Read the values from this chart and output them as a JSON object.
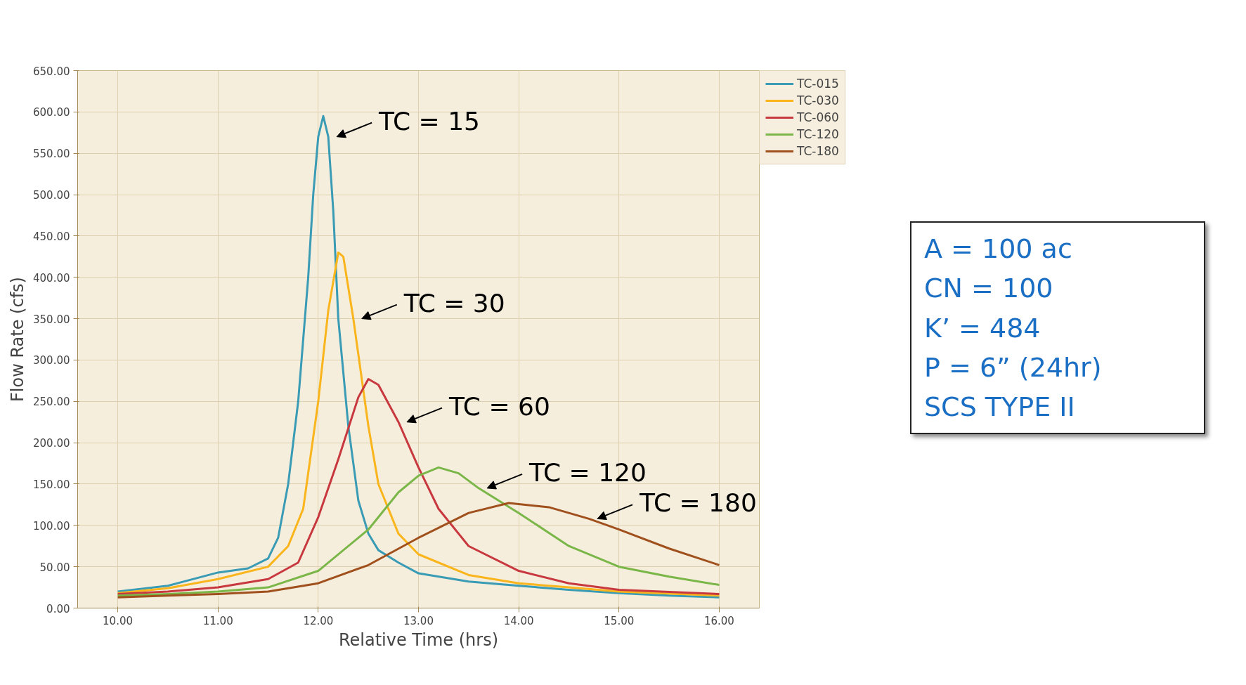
{
  "chart_data": {
    "type": "line",
    "xlabel": "Relative Time (hrs)",
    "ylabel": "Flow Rate (cfs)",
    "xlim": [
      9.6,
      16.4
    ],
    "ylim": [
      0,
      650
    ],
    "xticks": [
      {
        "value": 10,
        "label": "10.00"
      },
      {
        "value": 11,
        "label": "11.00"
      },
      {
        "value": 12,
        "label": "12.00"
      },
      {
        "value": 13,
        "label": "13.00"
      },
      {
        "value": 14,
        "label": "14.00"
      },
      {
        "value": 15,
        "label": "15.00"
      },
      {
        "value": 16,
        "label": "16.00"
      }
    ],
    "yticks": [
      {
        "value": 0,
        "label": "0.00"
      },
      {
        "value": 50,
        "label": "50.00"
      },
      {
        "value": 100,
        "label": "100.00"
      },
      {
        "value": 150,
        "label": "150.00"
      },
      {
        "value": 200,
        "label": "200.00"
      },
      {
        "value": 250,
        "label": "250.00"
      },
      {
        "value": 300,
        "label": "300.00"
      },
      {
        "value": 350,
        "label": "350.00"
      },
      {
        "value": 400,
        "label": "400.00"
      },
      {
        "value": 450,
        "label": "450.00"
      },
      {
        "value": 500,
        "label": "500.00"
      },
      {
        "value": 550,
        "label": "550.00"
      },
      {
        "value": 600,
        "label": "600.00"
      },
      {
        "value": 650,
        "label": "650.00"
      }
    ],
    "grid": true,
    "legend": "top right",
    "marker": "none",
    "line_style": "solid",
    "series": [
      {
        "name": "TC-015",
        "color": "#3a9bb5",
        "x": [
          10.0,
          10.5,
          11.0,
          11.3,
          11.5,
          11.6,
          11.7,
          11.8,
          11.9,
          11.95,
          12.0,
          12.05,
          12.1,
          12.15,
          12.2,
          12.3,
          12.4,
          12.5,
          12.6,
          12.8,
          13.0,
          13.5,
          14.0,
          14.5,
          15.0,
          15.5,
          16.0
        ],
        "values": [
          20,
          27,
          43,
          48,
          60,
          85,
          150,
          250,
          400,
          500,
          570,
          595,
          570,
          480,
          350,
          220,
          130,
          90,
          70,
          55,
          42,
          32,
          27,
          22,
          18,
          15,
          13
        ]
      },
      {
        "name": "TC-030",
        "color": "#f9b51b",
        "x": [
          10.0,
          10.5,
          11.0,
          11.5,
          11.7,
          11.85,
          12.0,
          12.1,
          12.2,
          12.25,
          12.35,
          12.5,
          12.6,
          12.8,
          13.0,
          13.5,
          14.0,
          14.5,
          15.0,
          16.0
        ],
        "values": [
          18,
          24,
          35,
          50,
          75,
          120,
          250,
          360,
          430,
          425,
          350,
          220,
          150,
          90,
          65,
          40,
          30,
          25,
          20,
          15
        ]
      },
      {
        "name": "TC-060",
        "color": "#c8393f",
        "x": [
          10.0,
          10.5,
          11.0,
          11.5,
          11.8,
          12.0,
          12.2,
          12.4,
          12.5,
          12.6,
          12.8,
          13.0,
          13.2,
          13.5,
          14.0,
          14.5,
          15.0,
          16.0
        ],
        "values": [
          17,
          20,
          25,
          35,
          55,
          110,
          180,
          255,
          277,
          270,
          225,
          170,
          120,
          75,
          45,
          30,
          22,
          17
        ]
      },
      {
        "name": "TC-120",
        "color": "#7ab648",
        "x": [
          10.0,
          10.5,
          11.0,
          11.5,
          12.0,
          12.5,
          12.8,
          13.0,
          13.2,
          13.4,
          13.6,
          14.0,
          14.5,
          15.0,
          15.5,
          16.0
        ],
        "values": [
          15,
          17,
          20,
          25,
          45,
          95,
          140,
          160,
          170,
          163,
          145,
          115,
          75,
          50,
          38,
          28
        ]
      },
      {
        "name": "TC-180",
        "color": "#a0501c",
        "x": [
          10.0,
          10.5,
          11.0,
          11.5,
          12.0,
          12.5,
          13.0,
          13.5,
          13.9,
          14.3,
          14.7,
          15.0,
          15.5,
          16.0
        ],
        "values": [
          13,
          15,
          17,
          20,
          30,
          52,
          85,
          115,
          127,
          122,
          108,
          95,
          72,
          52
        ]
      }
    ],
    "annotations": [
      {
        "text": "TC = 15",
        "x": 12.1,
        "y": 570
      },
      {
        "text": "TC = 30",
        "x": 12.35,
        "y": 350
      },
      {
        "text": "TC = 60",
        "x": 12.8,
        "y": 225
      },
      {
        "text": "TC = 120",
        "x": 13.6,
        "y": 145
      },
      {
        "text": "TC = 180",
        "x": 14.7,
        "y": 108
      },
      "A = 100 ac",
      "CN = 100",
      "K’ = 484",
      "P = 6” (24hr)",
      "SCS TYPE II"
    ]
  }
}
